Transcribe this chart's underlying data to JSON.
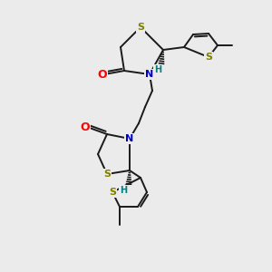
{
  "bg_color": "#ebebeb",
  "atom_colors": {
    "S": "#808000",
    "N": "#0000cc",
    "O": "#ff0000",
    "C": "#000000",
    "H": "#008080"
  },
  "bond_color": "#1a1a1a",
  "figsize": [
    3.0,
    3.0
  ],
  "dpi": 100
}
